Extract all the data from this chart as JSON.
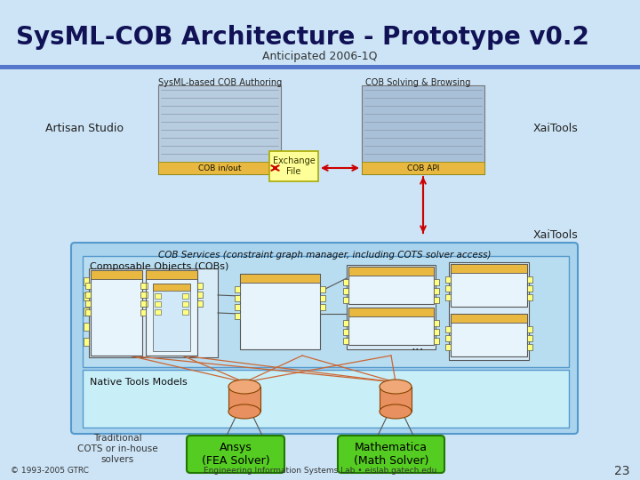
{
  "title": "SysML-COB Architecture - Prototype v0.2",
  "subtitle": "Anticipated 2006-1Q",
  "bg_color": "#cce4f6",
  "title_color": "#111155",
  "blue_bar_color": "#5577cc",
  "label_authoring": "SysML-based COB Authoring",
  "label_solving": "COB Solving & Browsing",
  "label_artisan": "Artisan Studio",
  "label_xaitools1": "XaiTools",
  "label_xaitools2": "XaiTools",
  "label_cob_inout": "COB in/out",
  "label_exchange": "Exchange\nFile",
  "label_cob_api": "COB API",
  "label_cob_services": "COB Services (constraint graph manager, including COTS solver access)",
  "label_composable": "Composable Objects (COBs)",
  "label_native": "Native Tools Models",
  "label_traditional": "Traditional\nCOTS or in-house\nsolvers",
  "label_ansys": "Ansys\n(FEA Solver)",
  "label_mathematica": "Mathematica\n(Math Solver)",
  "label_copyright": "© 1993-2005 GTRC",
  "label_eislab": "Engineering Information Systems Lab • eislab.gatech.edu",
  "label_page": "23",
  "exchange_box_color": "#ffff99",
  "exchange_border_color": "#aaaa00",
  "gold_bar_color": "#e8b840",
  "outer_box_fill": "#aad4ee",
  "outer_box_edge": "#5599cc",
  "cob_box_fill": "#b8ddf0",
  "cob_box_edge": "#5599cc",
  "ntm_box_fill": "#c8eef8",
  "ntm_box_edge": "#5599cc",
  "green_box_color": "#55cc22",
  "green_box_border": "#227700",
  "arrow_color": "#cc0000",
  "connector_color": "#cc6633",
  "cob_body_fill": "#e8f4fc",
  "cob_header_fill": "#e8b840",
  "cob_sq_fill": "#ffff80",
  "cylinder_body": "#e89060",
  "cylinder_top": "#f0a878",
  "screen1_fill": "#b8cce0",
  "screen2_fill": "#a8c0d8"
}
